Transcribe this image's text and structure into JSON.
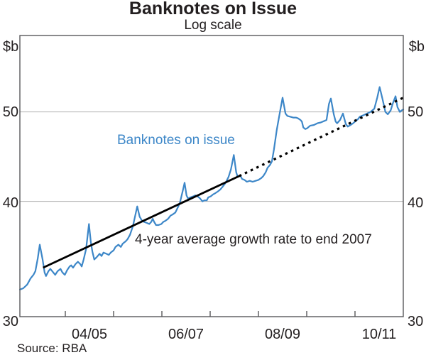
{
  "header": {
    "title": "Banknotes on Issue",
    "subtitle": "Log scale"
  },
  "footer": {
    "source": "Source: RBA"
  },
  "chart_data": {
    "type": "line",
    "title": "Banknotes on Issue",
    "subtitle": "Log scale",
    "y_axis": {
      "unit": "$b",
      "scale": "log",
      "ticks": [
        30,
        40,
        50
      ],
      "range": [
        30,
        60.5
      ],
      "gridlines": [
        40,
        50
      ]
    },
    "x_axis": {
      "tick_years": [
        2004.5,
        2005.5,
        2006.5,
        2007.5,
        2008.5,
        2009.5,
        2010.5
      ],
      "range_years": [
        2003.56,
        2011.5
      ],
      "labels": [
        {
          "text": "04/05",
          "center_year": 2005.0
        },
        {
          "text": "06/07",
          "center_year": 2007.0
        },
        {
          "text": "08/09",
          "center_year": 2009.0
        },
        {
          "text": "10/11",
          "center_year": 2011.0
        }
      ]
    },
    "series": {
      "name": "Banknotes on issue",
      "color": "#3d87c8",
      "points": [
        [
          2003.56,
          32.1
        ],
        [
          2003.63,
          32.2
        ],
        [
          2003.71,
          32.5
        ],
        [
          2003.78,
          33.0
        ],
        [
          2003.84,
          33.3
        ],
        [
          2003.88,
          33.6
        ],
        [
          2003.93,
          34.7
        ],
        [
          2003.97,
          35.9
        ],
        [
          2004.03,
          34.6
        ],
        [
          2004.07,
          33.5
        ],
        [
          2004.1,
          33.2
        ],
        [
          2004.15,
          33.6
        ],
        [
          2004.19,
          33.8
        ],
        [
          2004.25,
          33.5
        ],
        [
          2004.29,
          33.3
        ],
        [
          2004.34,
          33.6
        ],
        [
          2004.4,
          33.8
        ],
        [
          2004.44,
          33.5
        ],
        [
          2004.49,
          33.3
        ],
        [
          2004.54,
          33.7
        ],
        [
          2004.59,
          34.0
        ],
        [
          2004.62,
          34.1
        ],
        [
          2004.66,
          33.9
        ],
        [
          2004.71,
          34.2
        ],
        [
          2004.76,
          34.4
        ],
        [
          2004.81,
          34.2
        ],
        [
          2004.84,
          34.0
        ],
        [
          2004.88,
          34.6
        ],
        [
          2004.93,
          35.5
        ],
        [
          2004.99,
          37.8
        ],
        [
          2005.03,
          36.1
        ],
        [
          2005.06,
          35.3
        ],
        [
          2005.1,
          34.6
        ],
        [
          2005.15,
          34.8
        ],
        [
          2005.21,
          35.1
        ],
        [
          2005.25,
          34.9
        ],
        [
          2005.29,
          35.2
        ],
        [
          2005.35,
          35.1
        ],
        [
          2005.4,
          35.0
        ],
        [
          2005.44,
          35.2
        ],
        [
          2005.5,
          35.4
        ],
        [
          2005.54,
          35.7
        ],
        [
          2005.6,
          35.9
        ],
        [
          2005.65,
          35.7
        ],
        [
          2005.69,
          36.0
        ],
        [
          2005.75,
          36.2
        ],
        [
          2005.79,
          36.4
        ],
        [
          2005.84,
          36.8
        ],
        [
          2005.9,
          37.6
        ],
        [
          2005.99,
          39.5
        ],
        [
          2006.04,
          38.5
        ],
        [
          2006.09,
          38.1
        ],
        [
          2006.13,
          38.0
        ],
        [
          2006.19,
          37.9
        ],
        [
          2006.24,
          37.8
        ],
        [
          2006.28,
          38.0
        ],
        [
          2006.31,
          38.3
        ],
        [
          2006.34,
          38.0
        ],
        [
          2006.38,
          37.7
        ],
        [
          2006.43,
          37.7
        ],
        [
          2006.49,
          37.8
        ],
        [
          2006.53,
          38.0
        ],
        [
          2006.57,
          38.1
        ],
        [
          2006.63,
          38.3
        ],
        [
          2006.68,
          38.6
        ],
        [
          2006.72,
          38.7
        ],
        [
          2006.78,
          38.9
        ],
        [
          2006.82,
          39.3
        ],
        [
          2006.87,
          39.8
        ],
        [
          2006.93,
          41.0
        ],
        [
          2006.97,
          41.9
        ],
        [
          2007.01,
          40.6
        ],
        [
          2007.04,
          40.3
        ],
        [
          2007.09,
          40.4
        ],
        [
          2007.15,
          40.5
        ],
        [
          2007.19,
          40.6
        ],
        [
          2007.24,
          40.5
        ],
        [
          2007.29,
          40.3
        ],
        [
          2007.34,
          40.0
        ],
        [
          2007.38,
          40.1
        ],
        [
          2007.43,
          40.1
        ],
        [
          2007.46,
          40.4
        ],
        [
          2007.51,
          40.5
        ],
        [
          2007.56,
          40.7
        ],
        [
          2007.6,
          40.8
        ],
        [
          2007.66,
          41.0
        ],
        [
          2007.71,
          41.2
        ],
        [
          2007.76,
          41.5
        ],
        [
          2007.82,
          41.9
        ],
        [
          2007.88,
          42.5
        ],
        [
          2007.93,
          43.3
        ],
        [
          2007.99,
          44.9
        ],
        [
          2008.04,
          43.0
        ],
        [
          2008.07,
          42.5
        ],
        [
          2008.12,
          42.7
        ],
        [
          2008.16,
          42.3
        ],
        [
          2008.21,
          42.2
        ],
        [
          2008.26,
          42.0
        ],
        [
          2008.32,
          42.1
        ],
        [
          2008.38,
          42.0
        ],
        [
          2008.44,
          42.1
        ],
        [
          2008.5,
          42.2
        ],
        [
          2008.56,
          42.4
        ],
        [
          2008.6,
          42.6
        ],
        [
          2008.65,
          43.0
        ],
        [
          2008.69,
          43.5
        ],
        [
          2008.74,
          43.8
        ],
        [
          2008.78,
          44.2
        ],
        [
          2008.82,
          45.5
        ],
        [
          2008.88,
          47.8
        ],
        [
          2008.94,
          49.8
        ],
        [
          2009.0,
          51.8
        ],
        [
          2009.06,
          49.8
        ],
        [
          2009.1,
          49.5
        ],
        [
          2009.16,
          49.4
        ],
        [
          2009.22,
          49.3
        ],
        [
          2009.28,
          49.3
        ],
        [
          2009.32,
          49.2
        ],
        [
          2009.37,
          49.0
        ],
        [
          2009.4,
          48.8
        ],
        [
          2009.43,
          48.1
        ],
        [
          2009.47,
          47.9
        ],
        [
          2009.51,
          48.0
        ],
        [
          2009.57,
          48.3
        ],
        [
          2009.65,
          48.4
        ],
        [
          2009.72,
          48.6
        ],
        [
          2009.79,
          48.7
        ],
        [
          2009.87,
          48.9
        ],
        [
          2009.91,
          49.0
        ],
        [
          2009.96,
          51.0
        ],
        [
          2010.0,
          51.7
        ],
        [
          2010.06,
          49.7
        ],
        [
          2010.1,
          48.8
        ],
        [
          2010.13,
          48.6
        ],
        [
          2010.19,
          49.0
        ],
        [
          2010.25,
          49.8
        ],
        [
          2010.31,
          48.5
        ],
        [
          2010.35,
          48.2
        ],
        [
          2010.41,
          48.4
        ],
        [
          2010.46,
          48.6
        ],
        [
          2010.5,
          48.8
        ],
        [
          2010.56,
          49.1
        ],
        [
          2010.6,
          49.4
        ],
        [
          2010.68,
          49.6
        ],
        [
          2010.75,
          49.8
        ],
        [
          2010.82,
          50.0
        ],
        [
          2010.9,
          50.4
        ],
        [
          2010.96,
          51.8
        ],
        [
          2011.01,
          53.2
        ],
        [
          2011.07,
          51.6
        ],
        [
          2011.13,
          50.0
        ],
        [
          2011.18,
          49.7
        ],
        [
          2011.24,
          50.2
        ],
        [
          2011.28,
          51.0
        ],
        [
          2011.34,
          52.0
        ],
        [
          2011.38,
          50.6
        ],
        [
          2011.43,
          50.0
        ],
        [
          2011.47,
          50.2
        ],
        [
          2011.5,
          50.3
        ]
      ]
    },
    "trend": {
      "label": "4-year average growth rate to end 2007",
      "color": "#000000",
      "solid_from": [
        2004.04,
        33.9
      ],
      "solid_to": [
        2008.1,
        42.6
      ],
      "dotted_to": [
        2011.5,
        51.8
      ]
    }
  }
}
